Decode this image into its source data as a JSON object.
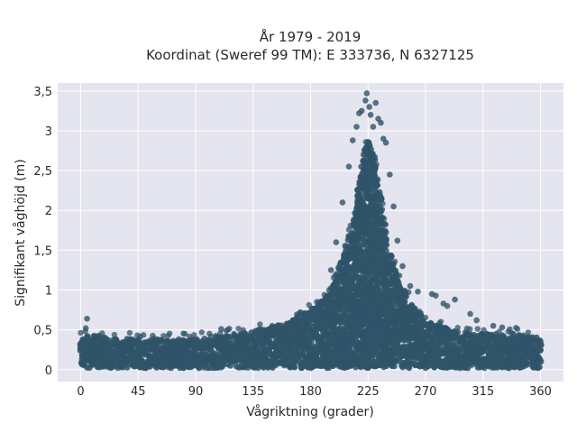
{
  "chart_data": {
    "type": "scatter",
    "title": "År 1979 - 2019",
    "subtitle": "Koordinat (Sweref 99 TM): E 333736, N 6327125",
    "xlabel": "Vågriktning (grader)",
    "ylabel": "Signifikant våghöjd (m)",
    "xlim": [
      -18,
      378
    ],
    "ylim": [
      -0.15,
      3.6
    ],
    "x_ticks": [
      0,
      45,
      90,
      135,
      180,
      225,
      270,
      315,
      360
    ],
    "x_tick_labels": [
      "0",
      "45",
      "90",
      "135",
      "180",
      "225",
      "270",
      "315",
      "360"
    ],
    "y_ticks": [
      0,
      0.5,
      1,
      1.5,
      2,
      2.5,
      3,
      3.5
    ],
    "y_tick_labels": [
      "0",
      "0,5",
      "1",
      "1,5",
      "2",
      "2,5",
      "3",
      "3,5"
    ],
    "grid": true,
    "colors": {
      "background": "#e5e5ef",
      "marker": "#2f5468",
      "grid": "#ffffff"
    },
    "envelope": {
      "x": [
        0,
        5,
        20,
        45,
        90,
        110,
        135,
        160,
        180,
        195,
        205,
        215,
        220,
        225,
        230,
        235,
        240,
        250,
        260,
        270,
        280,
        295,
        315,
        340,
        360
      ],
      "upper": [
        0.4,
        0.45,
        0.4,
        0.38,
        0.38,
        0.42,
        0.48,
        0.58,
        0.75,
        0.95,
        1.4,
        2.0,
        2.6,
        2.9,
        2.7,
        2.2,
        1.6,
        1.1,
        0.8,
        0.62,
        0.55,
        0.48,
        0.45,
        0.45,
        0.4
      ],
      "lower": [
        0.02,
        0.02,
        0.02,
        0.02,
        0.02,
        0.02,
        0.02,
        0.02,
        0.02,
        0.02,
        0.02,
        0.02,
        0.02,
        0.02,
        0.02,
        0.02,
        0.02,
        0.02,
        0.02,
        0.02,
        0.02,
        0.02,
        0.02,
        0.02,
        0.02
      ]
    },
    "points": [
      {
        "x": 5,
        "y": 0.64
      },
      {
        "x": 4,
        "y": 0.52
      },
      {
        "x": 110,
        "y": 0.51
      },
      {
        "x": 150,
        "y": 0.55
      },
      {
        "x": 172,
        "y": 0.72
      },
      {
        "x": 185,
        "y": 0.85
      },
      {
        "x": 196,
        "y": 1.25
      },
      {
        "x": 200,
        "y": 1.6
      },
      {
        "x": 205,
        "y": 2.1
      },
      {
        "x": 210,
        "y": 2.55
      },
      {
        "x": 213,
        "y": 2.88
      },
      {
        "x": 216,
        "y": 3.05
      },
      {
        "x": 218,
        "y": 3.22
      },
      {
        "x": 220,
        "y": 3.25
      },
      {
        "x": 223,
        "y": 3.38
      },
      {
        "x": 224,
        "y": 3.47
      },
      {
        "x": 226,
        "y": 3.3
      },
      {
        "x": 227,
        "y": 3.2
      },
      {
        "x": 229,
        "y": 3.05
      },
      {
        "x": 231,
        "y": 3.35
      },
      {
        "x": 233,
        "y": 3.15
      },
      {
        "x": 235,
        "y": 3.1
      },
      {
        "x": 237,
        "y": 2.9
      },
      {
        "x": 239,
        "y": 2.85
      },
      {
        "x": 242,
        "y": 2.45
      },
      {
        "x": 245,
        "y": 2.05
      },
      {
        "x": 248,
        "y": 1.62
      },
      {
        "x": 252,
        "y": 1.3
      },
      {
        "x": 258,
        "y": 1.05
      },
      {
        "x": 264,
        "y": 0.98
      },
      {
        "x": 275,
        "y": 0.95
      },
      {
        "x": 278,
        "y": 0.93
      },
      {
        "x": 284,
        "y": 0.83
      },
      {
        "x": 287,
        "y": 0.8
      },
      {
        "x": 293,
        "y": 0.88
      },
      {
        "x": 305,
        "y": 0.7
      },
      {
        "x": 310,
        "y": 0.62
      },
      {
        "x": 323,
        "y": 0.55
      },
      {
        "x": 330,
        "y": 0.53
      }
    ]
  }
}
